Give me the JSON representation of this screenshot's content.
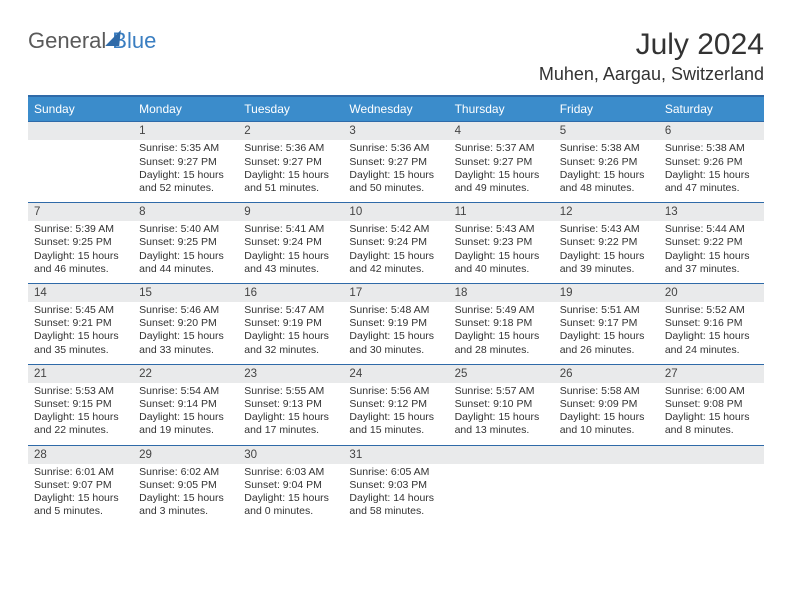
{
  "logo": {
    "text1": "General",
    "text2": "Blue"
  },
  "title": "July 2024",
  "location": "Muhen, Aargau, Switzerland",
  "colors": {
    "header_bg": "#3b8ccb",
    "rule": "#2f6aa8",
    "daynum_bg": "#e9eaeb",
    "text": "#333333",
    "logo_gray": "#5a5a5a",
    "logo_blue": "#3a7ec1"
  },
  "weekdays": [
    "Sunday",
    "Monday",
    "Tuesday",
    "Wednesday",
    "Thursday",
    "Friday",
    "Saturday"
  ],
  "weeks": [
    [
      null,
      {
        "n": "1",
        "sr": "Sunrise: 5:35 AM",
        "ss": "Sunset: 9:27 PM",
        "dl": "Daylight: 15 hours and 52 minutes."
      },
      {
        "n": "2",
        "sr": "Sunrise: 5:36 AM",
        "ss": "Sunset: 9:27 PM",
        "dl": "Daylight: 15 hours and 51 minutes."
      },
      {
        "n": "3",
        "sr": "Sunrise: 5:36 AM",
        "ss": "Sunset: 9:27 PM",
        "dl": "Daylight: 15 hours and 50 minutes."
      },
      {
        "n": "4",
        "sr": "Sunrise: 5:37 AM",
        "ss": "Sunset: 9:27 PM",
        "dl": "Daylight: 15 hours and 49 minutes."
      },
      {
        "n": "5",
        "sr": "Sunrise: 5:38 AM",
        "ss": "Sunset: 9:26 PM",
        "dl": "Daylight: 15 hours and 48 minutes."
      },
      {
        "n": "6",
        "sr": "Sunrise: 5:38 AM",
        "ss": "Sunset: 9:26 PM",
        "dl": "Daylight: 15 hours and 47 minutes."
      }
    ],
    [
      {
        "n": "7",
        "sr": "Sunrise: 5:39 AM",
        "ss": "Sunset: 9:25 PM",
        "dl": "Daylight: 15 hours and 46 minutes."
      },
      {
        "n": "8",
        "sr": "Sunrise: 5:40 AM",
        "ss": "Sunset: 9:25 PM",
        "dl": "Daylight: 15 hours and 44 minutes."
      },
      {
        "n": "9",
        "sr": "Sunrise: 5:41 AM",
        "ss": "Sunset: 9:24 PM",
        "dl": "Daylight: 15 hours and 43 minutes."
      },
      {
        "n": "10",
        "sr": "Sunrise: 5:42 AM",
        "ss": "Sunset: 9:24 PM",
        "dl": "Daylight: 15 hours and 42 minutes."
      },
      {
        "n": "11",
        "sr": "Sunrise: 5:43 AM",
        "ss": "Sunset: 9:23 PM",
        "dl": "Daylight: 15 hours and 40 minutes."
      },
      {
        "n": "12",
        "sr": "Sunrise: 5:43 AM",
        "ss": "Sunset: 9:22 PM",
        "dl": "Daylight: 15 hours and 39 minutes."
      },
      {
        "n": "13",
        "sr": "Sunrise: 5:44 AM",
        "ss": "Sunset: 9:22 PM",
        "dl": "Daylight: 15 hours and 37 minutes."
      }
    ],
    [
      {
        "n": "14",
        "sr": "Sunrise: 5:45 AM",
        "ss": "Sunset: 9:21 PM",
        "dl": "Daylight: 15 hours and 35 minutes."
      },
      {
        "n": "15",
        "sr": "Sunrise: 5:46 AM",
        "ss": "Sunset: 9:20 PM",
        "dl": "Daylight: 15 hours and 33 minutes."
      },
      {
        "n": "16",
        "sr": "Sunrise: 5:47 AM",
        "ss": "Sunset: 9:19 PM",
        "dl": "Daylight: 15 hours and 32 minutes."
      },
      {
        "n": "17",
        "sr": "Sunrise: 5:48 AM",
        "ss": "Sunset: 9:19 PM",
        "dl": "Daylight: 15 hours and 30 minutes."
      },
      {
        "n": "18",
        "sr": "Sunrise: 5:49 AM",
        "ss": "Sunset: 9:18 PM",
        "dl": "Daylight: 15 hours and 28 minutes."
      },
      {
        "n": "19",
        "sr": "Sunrise: 5:51 AM",
        "ss": "Sunset: 9:17 PM",
        "dl": "Daylight: 15 hours and 26 minutes."
      },
      {
        "n": "20",
        "sr": "Sunrise: 5:52 AM",
        "ss": "Sunset: 9:16 PM",
        "dl": "Daylight: 15 hours and 24 minutes."
      }
    ],
    [
      {
        "n": "21",
        "sr": "Sunrise: 5:53 AM",
        "ss": "Sunset: 9:15 PM",
        "dl": "Daylight: 15 hours and 22 minutes."
      },
      {
        "n": "22",
        "sr": "Sunrise: 5:54 AM",
        "ss": "Sunset: 9:14 PM",
        "dl": "Daylight: 15 hours and 19 minutes."
      },
      {
        "n": "23",
        "sr": "Sunrise: 5:55 AM",
        "ss": "Sunset: 9:13 PM",
        "dl": "Daylight: 15 hours and 17 minutes."
      },
      {
        "n": "24",
        "sr": "Sunrise: 5:56 AM",
        "ss": "Sunset: 9:12 PM",
        "dl": "Daylight: 15 hours and 15 minutes."
      },
      {
        "n": "25",
        "sr": "Sunrise: 5:57 AM",
        "ss": "Sunset: 9:10 PM",
        "dl": "Daylight: 15 hours and 13 minutes."
      },
      {
        "n": "26",
        "sr": "Sunrise: 5:58 AM",
        "ss": "Sunset: 9:09 PM",
        "dl": "Daylight: 15 hours and 10 minutes."
      },
      {
        "n": "27",
        "sr": "Sunrise: 6:00 AM",
        "ss": "Sunset: 9:08 PM",
        "dl": "Daylight: 15 hours and 8 minutes."
      }
    ],
    [
      {
        "n": "28",
        "sr": "Sunrise: 6:01 AM",
        "ss": "Sunset: 9:07 PM",
        "dl": "Daylight: 15 hours and 5 minutes."
      },
      {
        "n": "29",
        "sr": "Sunrise: 6:02 AM",
        "ss": "Sunset: 9:05 PM",
        "dl": "Daylight: 15 hours and 3 minutes."
      },
      {
        "n": "30",
        "sr": "Sunrise: 6:03 AM",
        "ss": "Sunset: 9:04 PM",
        "dl": "Daylight: 15 hours and 0 minutes."
      },
      {
        "n": "31",
        "sr": "Sunrise: 6:05 AM",
        "ss": "Sunset: 9:03 PM",
        "dl": "Daylight: 14 hours and 58 minutes."
      },
      null,
      null,
      null
    ]
  ]
}
